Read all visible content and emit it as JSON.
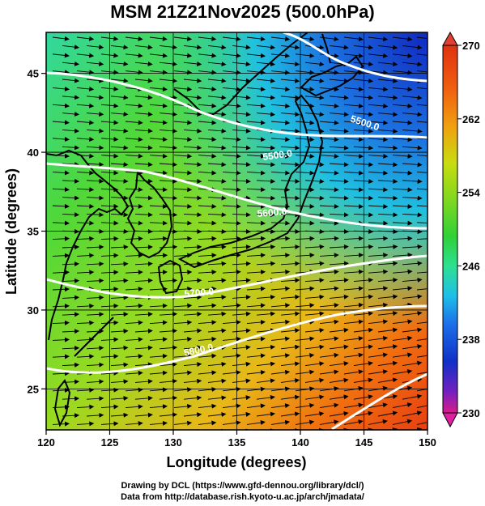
{
  "title": "MSM 21Z21Nov2025 (500.0hPa)",
  "axes": {
    "xlabel": "Longitude (degrees)",
    "ylabel": "Latitude  (degrees)",
    "xlim": [
      120,
      150
    ],
    "ylim": [
      22.4,
      47.6
    ],
    "xticks": [
      "120",
      "125",
      "130",
      "135",
      "140",
      "145",
      "150"
    ],
    "yticks": [
      "25",
      "30",
      "35",
      "40",
      "45"
    ]
  },
  "colorbar": {
    "min": 230,
    "max": 270,
    "labels": [
      "270",
      "262",
      "254",
      "246",
      "238",
      "230"
    ],
    "colors": [
      "#d81c8c",
      "#7020c0",
      "#1030c8",
      "#1c6ee8",
      "#1ec0e8",
      "#2ee090",
      "#30d038",
      "#80d820",
      "#c8dc10",
      "#f0a010",
      "#f06010",
      "#e03010"
    ]
  },
  "contours": {
    "labels": [
      "5500.0",
      "5500.0",
      "5600.0",
      "5700.0",
      "5800.0"
    ]
  },
  "credits": {
    "line1": "Drawing by DCL (https://www.gfd-dennou.org/library/dcl/)",
    "line2": "Data from http://database.rish.kyoto-u.ac.jp/arch/jmadata/"
  },
  "colors": {
    "frame": "#000000",
    "contour": "#ffffff",
    "coast": "#000000"
  }
}
